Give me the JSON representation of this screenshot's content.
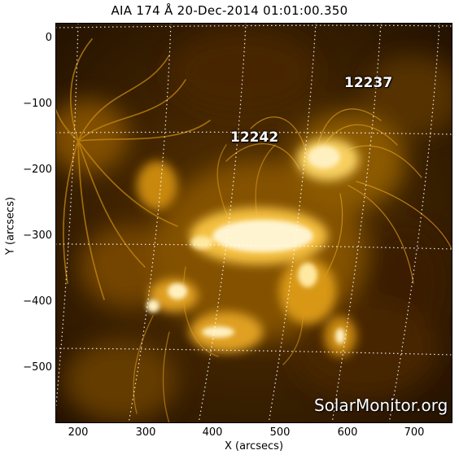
{
  "title": "AIA 174 Å 20-Dec-2014 01:01:00.350",
  "xlabel": "X (arcsecs)",
  "ylabel": "Y (arcsecs)",
  "x_ticks": [
    "200",
    "300",
    "400",
    "500",
    "600",
    "700"
  ],
  "y_ticks": [
    "0",
    "−100",
    "−200",
    "−300",
    "−400",
    "−500"
  ],
  "regions": [
    {
      "id": "12237",
      "label": "12237"
    },
    {
      "id": "12242",
      "label": "12242"
    }
  ],
  "watermark": "SolarMonitor.org",
  "colors": {
    "dark": "#1c0c00",
    "mid": "#a86a00",
    "bright": "#f0c040",
    "white": "#fff8e0"
  }
}
